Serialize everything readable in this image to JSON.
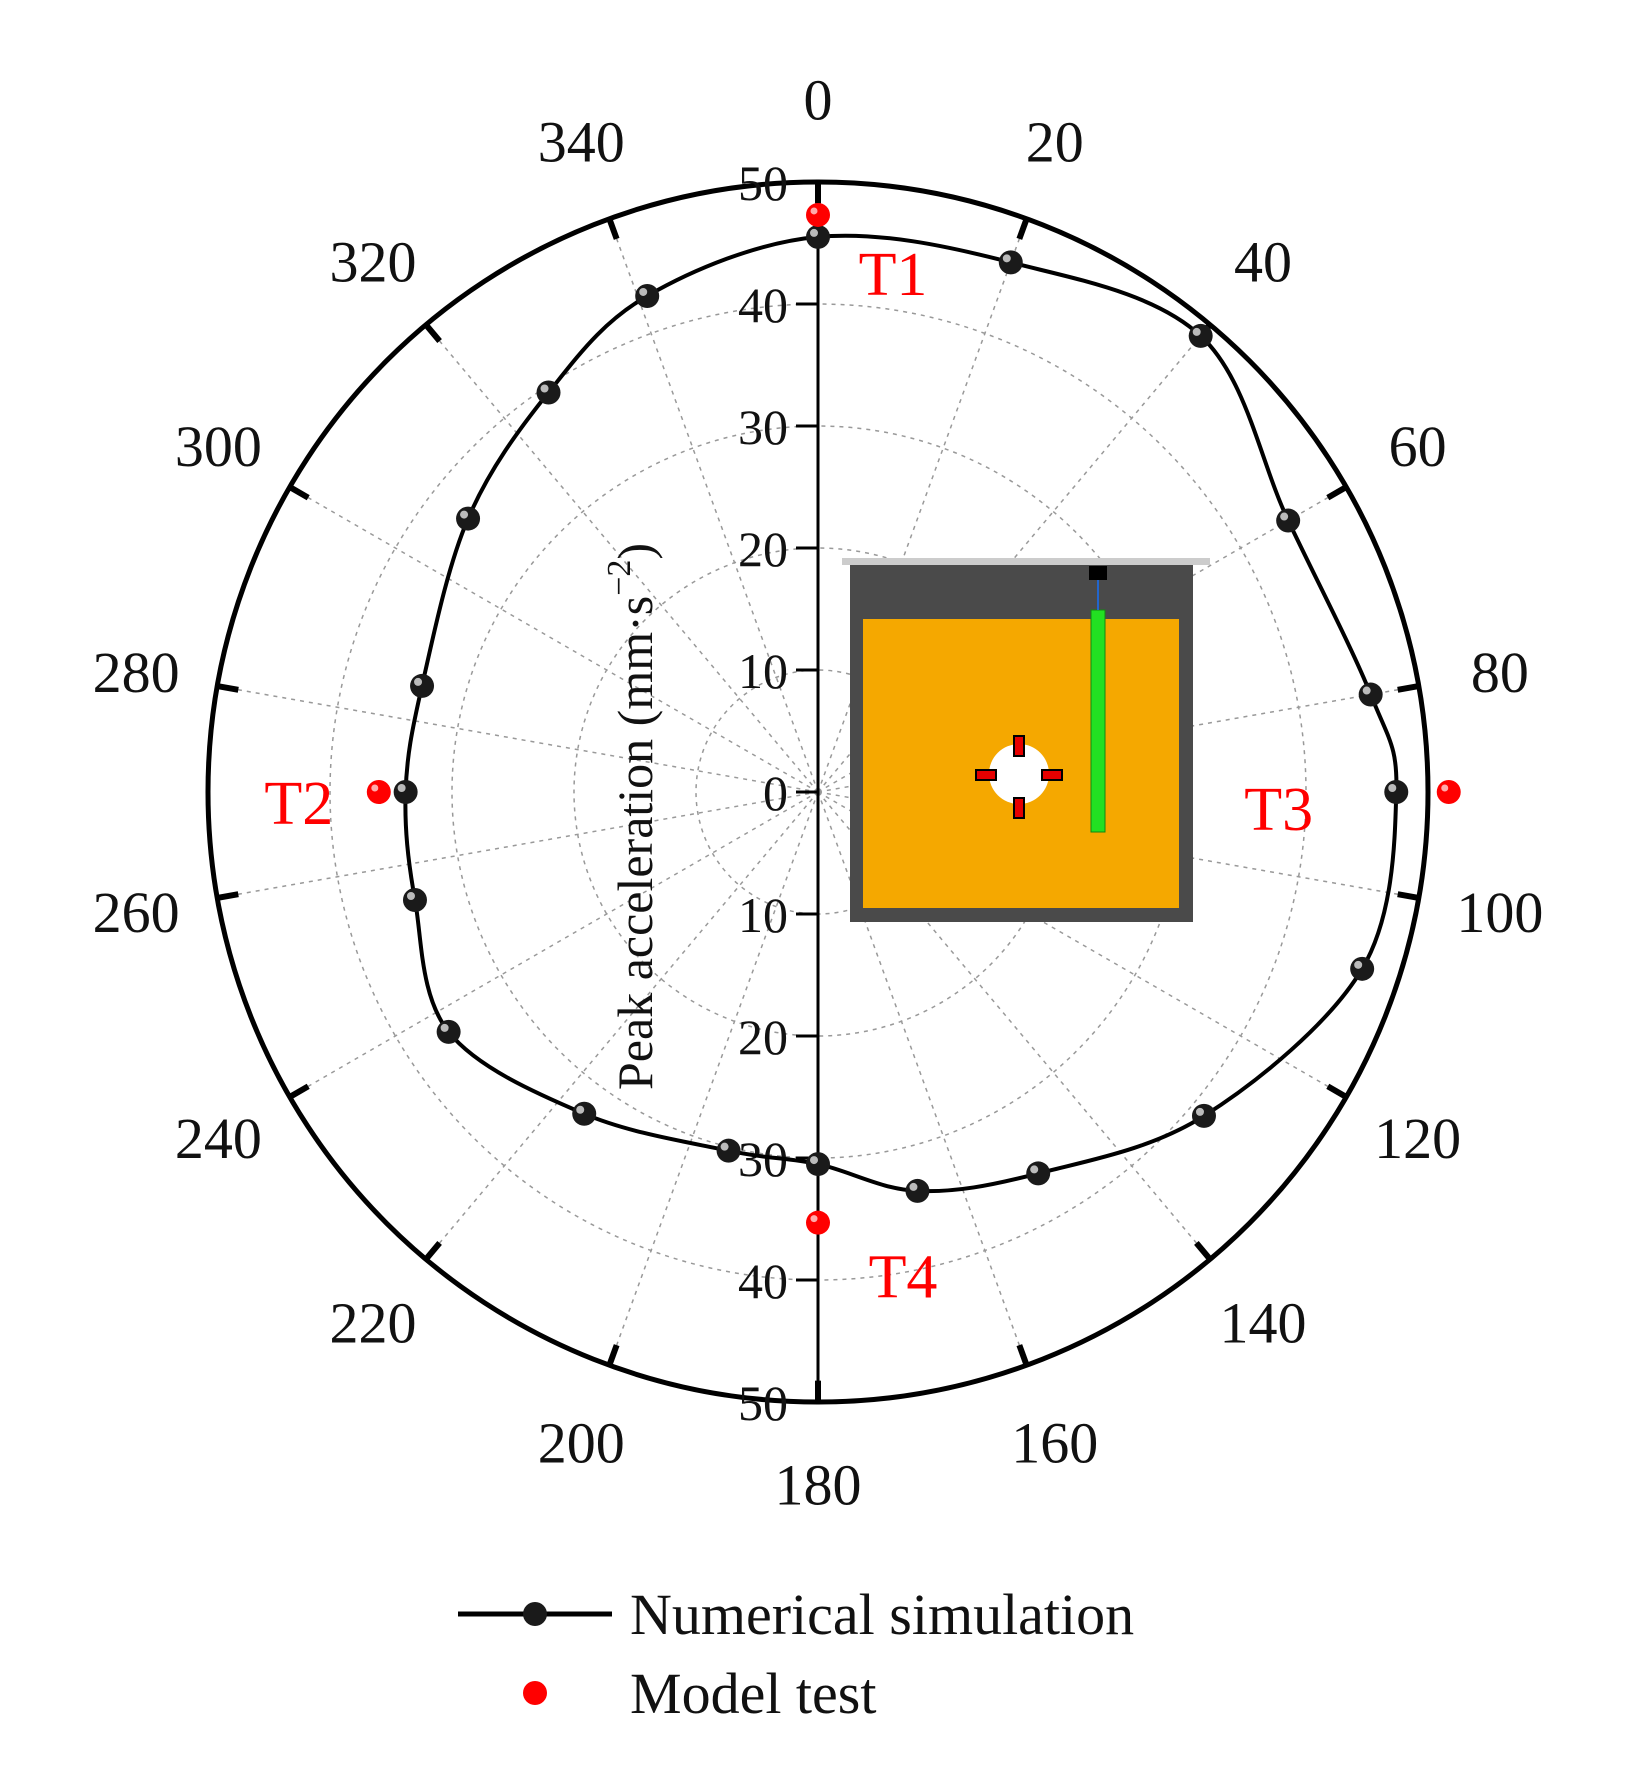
{
  "chart_data": {
    "type": "polar-line-scatter",
    "angular_axis": {
      "ticks": [
        0,
        20,
        40,
        60,
        80,
        100,
        120,
        140,
        160,
        180,
        200,
        220,
        240,
        260,
        280,
        300,
        320,
        340
      ],
      "direction": "clockwise",
      "zero": "top"
    },
    "radial_axis": {
      "title": "Peak acceleration (mm·s",
      "title_exponent": "−2",
      "title_close": ")",
      "range": [
        0,
        50
      ],
      "ticks": [
        50,
        40,
        30,
        20,
        10,
        0,
        10,
        20,
        30,
        40,
        50
      ],
      "grid_rings": [
        10,
        20,
        30,
        40,
        50
      ],
      "grid": true
    },
    "series": [
      {
        "name": "Numerical simulation",
        "style": "line-with-markers",
        "color": "#000000",
        "points": [
          {
            "angle": 0,
            "r": 45.5
          },
          {
            "angle": 20,
            "r": 46.2
          },
          {
            "angle": 40,
            "r": 48.8
          },
          {
            "angle": 60,
            "r": 44.5
          },
          {
            "angle": 80,
            "r": 46.0
          },
          {
            "angle": 90,
            "r": 47.4
          },
          {
            "angle": 108,
            "r": 46.9
          },
          {
            "angle": 130,
            "r": 41.3
          },
          {
            "angle": 150,
            "r": 36.1
          },
          {
            "angle": 166,
            "r": 33.7
          },
          {
            "angle": 180,
            "r": 30.5
          },
          {
            "angle": 194,
            "r": 30.3
          },
          {
            "angle": 216,
            "r": 32.6
          },
          {
            "angle": 237,
            "r": 36.1
          },
          {
            "angle": 255,
            "r": 34.2
          },
          {
            "angle": 270,
            "r": 33.8
          },
          {
            "angle": 285,
            "r": 33.6
          },
          {
            "angle": 308,
            "r": 36.4
          },
          {
            "angle": 326,
            "r": 39.5
          },
          {
            "angle": 341,
            "r": 43.0
          },
          {
            "angle": 360,
            "r": 45.5
          }
        ]
      },
      {
        "name": "Model test",
        "style": "markers",
        "color": "#ff0000",
        "points": [
          {
            "angle": 0,
            "r": 47.3,
            "label": "T1"
          },
          {
            "angle": 270,
            "r": 36.0,
            "label": "T2"
          },
          {
            "angle": 90,
            "r": 51.7,
            "label": "T3"
          },
          {
            "angle": 180,
            "r": 35.3,
            "label": "T4"
          }
        ]
      }
    ],
    "legend": {
      "placement": "bottom",
      "items": [
        "Numerical simulation",
        "Model test"
      ]
    },
    "inset": {
      "description_colors": {
        "frame": "#4a4a4a",
        "soil": "#f5a800",
        "pile": "#22e022",
        "sensor": "#e60000",
        "top_plate": "#cccccc"
      }
    }
  }
}
